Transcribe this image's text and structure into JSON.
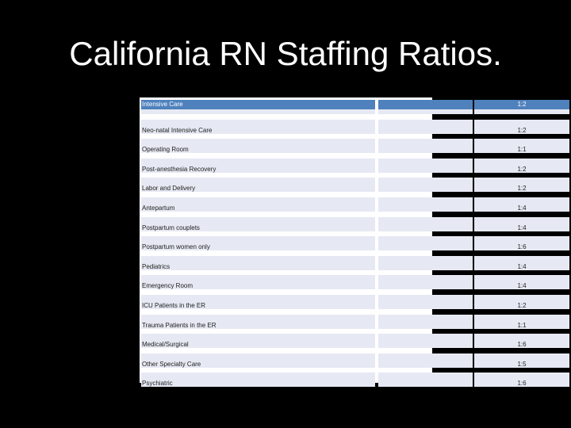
{
  "slide": {
    "title": "California RN Staffing Ratios."
  },
  "table": {
    "rows": [
      {
        "unit": "Intensive Care",
        "ratio": "1:2"
      },
      {
        "unit": "Neo-natal Intensive Care",
        "ratio": "1:2"
      },
      {
        "unit": "Operating Room",
        "ratio": "1:1"
      },
      {
        "unit": "Post-anesthesia Recovery",
        "ratio": "1:2"
      },
      {
        "unit": "Labor and Delivery",
        "ratio": "1:2"
      },
      {
        "unit": "Antepartum",
        "ratio": "1:4"
      },
      {
        "unit": "Postpartum couplets",
        "ratio": "1:4"
      },
      {
        "unit": "Postpartum women only",
        "ratio": "1:6"
      },
      {
        "unit": "Pediatrics",
        "ratio": "1:4"
      },
      {
        "unit": "Emergency Room",
        "ratio": "1:4"
      },
      {
        "unit": "ICU Patients in the ER",
        "ratio": "1:2"
      },
      {
        "unit": "Trauma Patients in the ER",
        "ratio": "1:1"
      },
      {
        "unit": "Medical/Surgical",
        "ratio": "1:6"
      },
      {
        "unit": "Other Specialty Care",
        "ratio": "1:5"
      },
      {
        "unit": "Psychiatric",
        "ratio": "1:6"
      }
    ]
  }
}
